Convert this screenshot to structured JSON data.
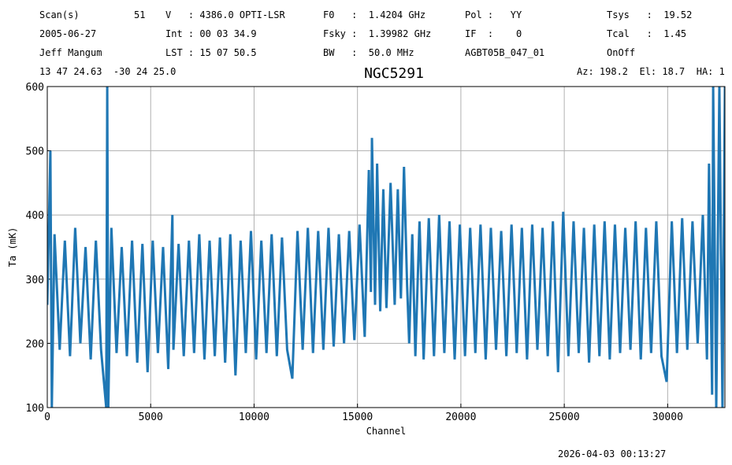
{
  "chart_data": {
    "type": "line",
    "title": "NGC5291",
    "annotations": [
      "Scan(s)",
      "51",
      "V   : 4386.0 OPTI-LSR",
      "F0   :  1.4204 GHz",
      "Pol :   YY",
      "Tsys   :  19.52",
      "2005-06-27",
      "Int : 00 03 34.9",
      "Fsky :  1.39982 GHz",
      "IF  :    0",
      "Tcal   :  1.45",
      "Jeff Mangum",
      "LST : 15 07 50.5",
      "BW   :  50.0 MHz",
      "AGBT05B_047_01",
      "OnOff",
      "13 47 24.63  -30 24 25.0",
      "Az: 198.2  El: 18.7  HA: 1",
      "2026-04-03 00:13:27"
    ],
    "xlabel": "Channel",
    "ylabel": "Ta (mK)",
    "color": "#1f77b4",
    "grid": true,
    "xlim": [
      0,
      32768
    ],
    "ylim": [
      100,
      600
    ],
    "xticks": [
      0,
      5000,
      10000,
      15000,
      20000,
      25000,
      30000
    ],
    "yticks": [
      100,
      200,
      300,
      400,
      500,
      600
    ],
    "x": [
      0,
      150,
      220,
      350,
      600,
      850,
      1100,
      1350,
      1600,
      1850,
      2100,
      2350,
      2600,
      2850,
      2900,
      2950,
      3100,
      3350,
      3600,
      3850,
      4100,
      4350,
      4600,
      4850,
      5100,
      5350,
      5600,
      5850,
      6050,
      6100,
      6350,
      6600,
      6850,
      7100,
      7350,
      7600,
      7850,
      8100,
      8350,
      8600,
      8850,
      9100,
      9350,
      9600,
      9850,
      10100,
      10350,
      10600,
      10850,
      11100,
      11350,
      11600,
      11850,
      12100,
      12350,
      12600,
      12850,
      13100,
      13350,
      13600,
      13850,
      14100,
      14350,
      14600,
      14850,
      15100,
      15350,
      15550,
      15650,
      15700,
      15850,
      15950,
      16100,
      16250,
      16400,
      16600,
      16800,
      16950,
      17100,
      17250,
      17400,
      17500,
      17650,
      17800,
      18000,
      18200,
      18450,
      18700,
      18950,
      19200,
      19450,
      19700,
      19950,
      20200,
      20450,
      20700,
      20950,
      21200,
      21450,
      21700,
      21950,
      22200,
      22450,
      22700,
      22950,
      23200,
      23450,
      23700,
      23950,
      24200,
      24450,
      24700,
      24950,
      25200,
      25450,
      25700,
      25950,
      26200,
      26450,
      26700,
      26950,
      27200,
      27450,
      27700,
      27950,
      28200,
      28450,
      28700,
      28950,
      29200,
      29450,
      29700,
      29950,
      30200,
      30450,
      30700,
      30950,
      31200,
      31450,
      31700,
      31900,
      32000,
      32150,
      32200,
      32350,
      32500,
      32650,
      32768
    ],
    "values": [
      260,
      500,
      100,
      370,
      190,
      360,
      180,
      380,
      200,
      350,
      175,
      360,
      190,
      100,
      600,
      100,
      380,
      185,
      350,
      180,
      360,
      170,
      355,
      155,
      360,
      185,
      350,
      160,
      400,
      190,
      355,
      180,
      360,
      185,
      370,
      175,
      360,
      180,
      365,
      170,
      370,
      150,
      360,
      185,
      375,
      175,
      360,
      185,
      370,
      180,
      365,
      190,
      145,
      375,
      190,
      380,
      185,
      375,
      190,
      380,
      195,
      370,
      200,
      375,
      205,
      385,
      210,
      470,
      280,
      520,
      260,
      480,
      250,
      440,
      255,
      450,
      260,
      440,
      270,
      475,
      290,
      200,
      370,
      180,
      390,
      175,
      395,
      180,
      400,
      185,
      390,
      175,
      385,
      180,
      380,
      185,
      385,
      175,
      380,
      190,
      375,
      180,
      385,
      185,
      380,
      175,
      385,
      190,
      380,
      180,
      390,
      155,
      405,
      180,
      390,
      185,
      380,
      170,
      385,
      180,
      390,
      175,
      385,
      185,
      380,
      190,
      390,
      175,
      380,
      185,
      390,
      180,
      140,
      390,
      185,
      395,
      190,
      390,
      200,
      400,
      175,
      480,
      120,
      600,
      100,
      600,
      100,
      600
    ]
  }
}
